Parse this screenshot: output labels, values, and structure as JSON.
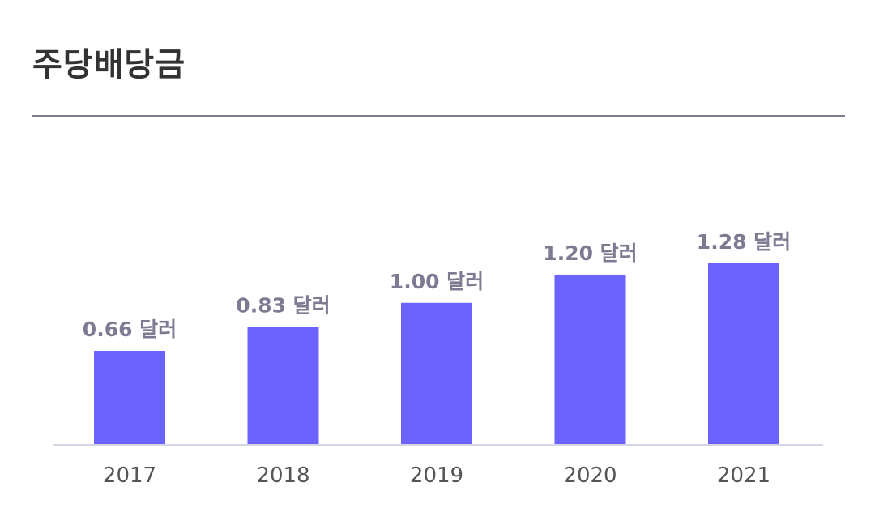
{
  "header": {
    "title": "주당배당금"
  },
  "colors": {
    "bar": "#6c63ff",
    "value_label": "#7d7b91",
    "axis": "#d3d7e6",
    "divider": "#7f7c8d"
  },
  "chart_data": {
    "type": "bar",
    "categories": [
      "2017",
      "2018",
      "2019",
      "2020",
      "2021"
    ],
    "values": [
      0.66,
      0.83,
      1.0,
      1.2,
      1.28
    ],
    "data_labels": [
      "0.66 달러",
      "0.83 달러",
      "1.00 달러",
      "1.20 달러",
      "1.28 달러"
    ],
    "title": "",
    "xlabel": "",
    "ylabel": "",
    "ylim": [
      0,
      1.28
    ],
    "grid": false,
    "legend": "none"
  }
}
